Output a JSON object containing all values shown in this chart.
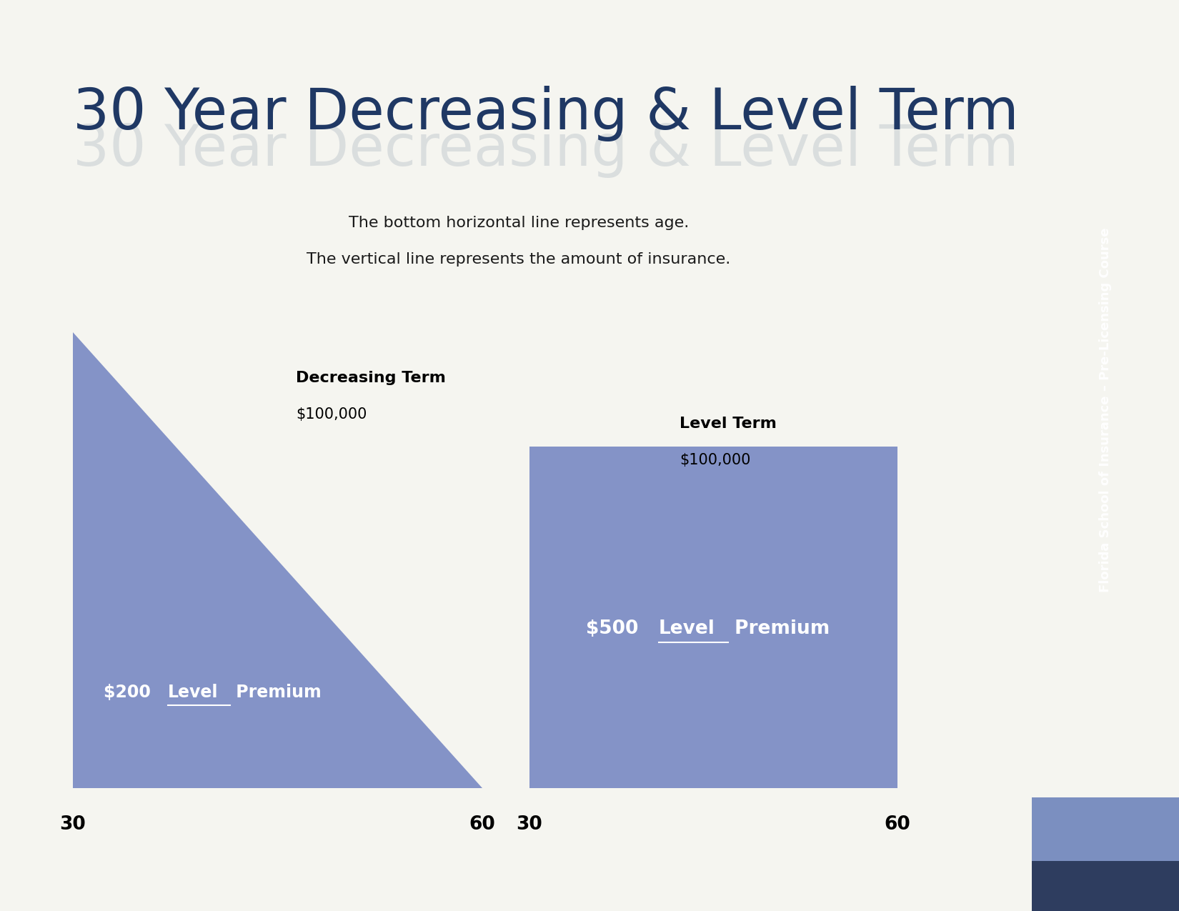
{
  "title": "30 Year Decreasing & Level Term",
  "title_color": "#1F3864",
  "subtitle_line1": "The bottom horizontal line represents age.",
  "subtitle_line2": "The vertical line represents the amount of insurance.",
  "subtitle_color": "#1a1a1a",
  "bg_color": "#F5F5F0",
  "main_bg": "#FAFAF7",
  "shape_color": "#7082C0",
  "decreasing_label_bold": "Decreasing Term",
  "decreasing_label_value": "$100,000",
  "level_label_bold": "Level Term",
  "level_label_value": "$100,000",
  "age_start": "30",
  "age_end": "60",
  "sidebar_color": "#3A4F7A",
  "sidebar_color_light": "#7B8FC0",
  "sidebar_text": "Florida School of Insurance – Pre-Licensing Course",
  "sidebar_text_color": "#FFFFFF"
}
